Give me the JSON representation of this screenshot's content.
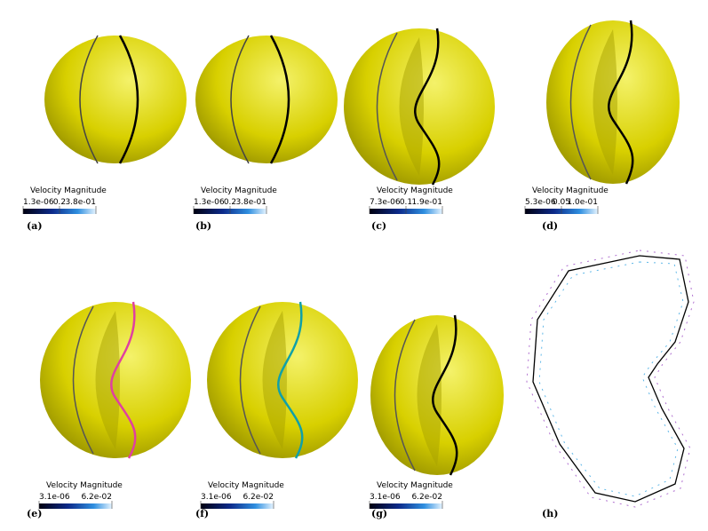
{
  "panels": [
    {
      "label": "(a)",
      "colorbar": {
        "title": "Velocity Magnitude",
        "ticks": [
          "1.3e-06",
          "0.2",
          "3.8e-01"
        ]
      }
    },
    {
      "label": "(b)",
      "colorbar": {
        "title": "Velocity Magnitude",
        "ticks": [
          "1.3e-06",
          "0.2",
          "3.8e-01"
        ]
      }
    },
    {
      "label": "(c)",
      "colorbar": {
        "title": "Velocity Magnitude",
        "ticks": [
          "7.3e-06",
          "0.1",
          "1.9e-01"
        ]
      }
    },
    {
      "label": "(d)",
      "colorbar": {
        "title": "Velocity Magnitude",
        "ticks": [
          "5.3e-06",
          "0.05",
          "1.0e-01"
        ]
      }
    },
    {
      "label": "(e)",
      "colorbar": {
        "title": "Velocity Magnitude",
        "ticks": [
          "3.1e-06",
          "6.2e-02"
        ]
      }
    },
    {
      "label": "(f)",
      "colorbar": {
        "title": "Velocity Magnitude",
        "ticks": [
          "3.1e-06",
          "6.2e-02"
        ]
      }
    },
    {
      "label": "(g)",
      "colorbar": {
        "title": "Velocity Magnitude",
        "ticks": [
          "3.1e-06",
          "6.2e-02"
        ]
      }
    },
    {
      "label": "(h)"
    }
  ]
}
